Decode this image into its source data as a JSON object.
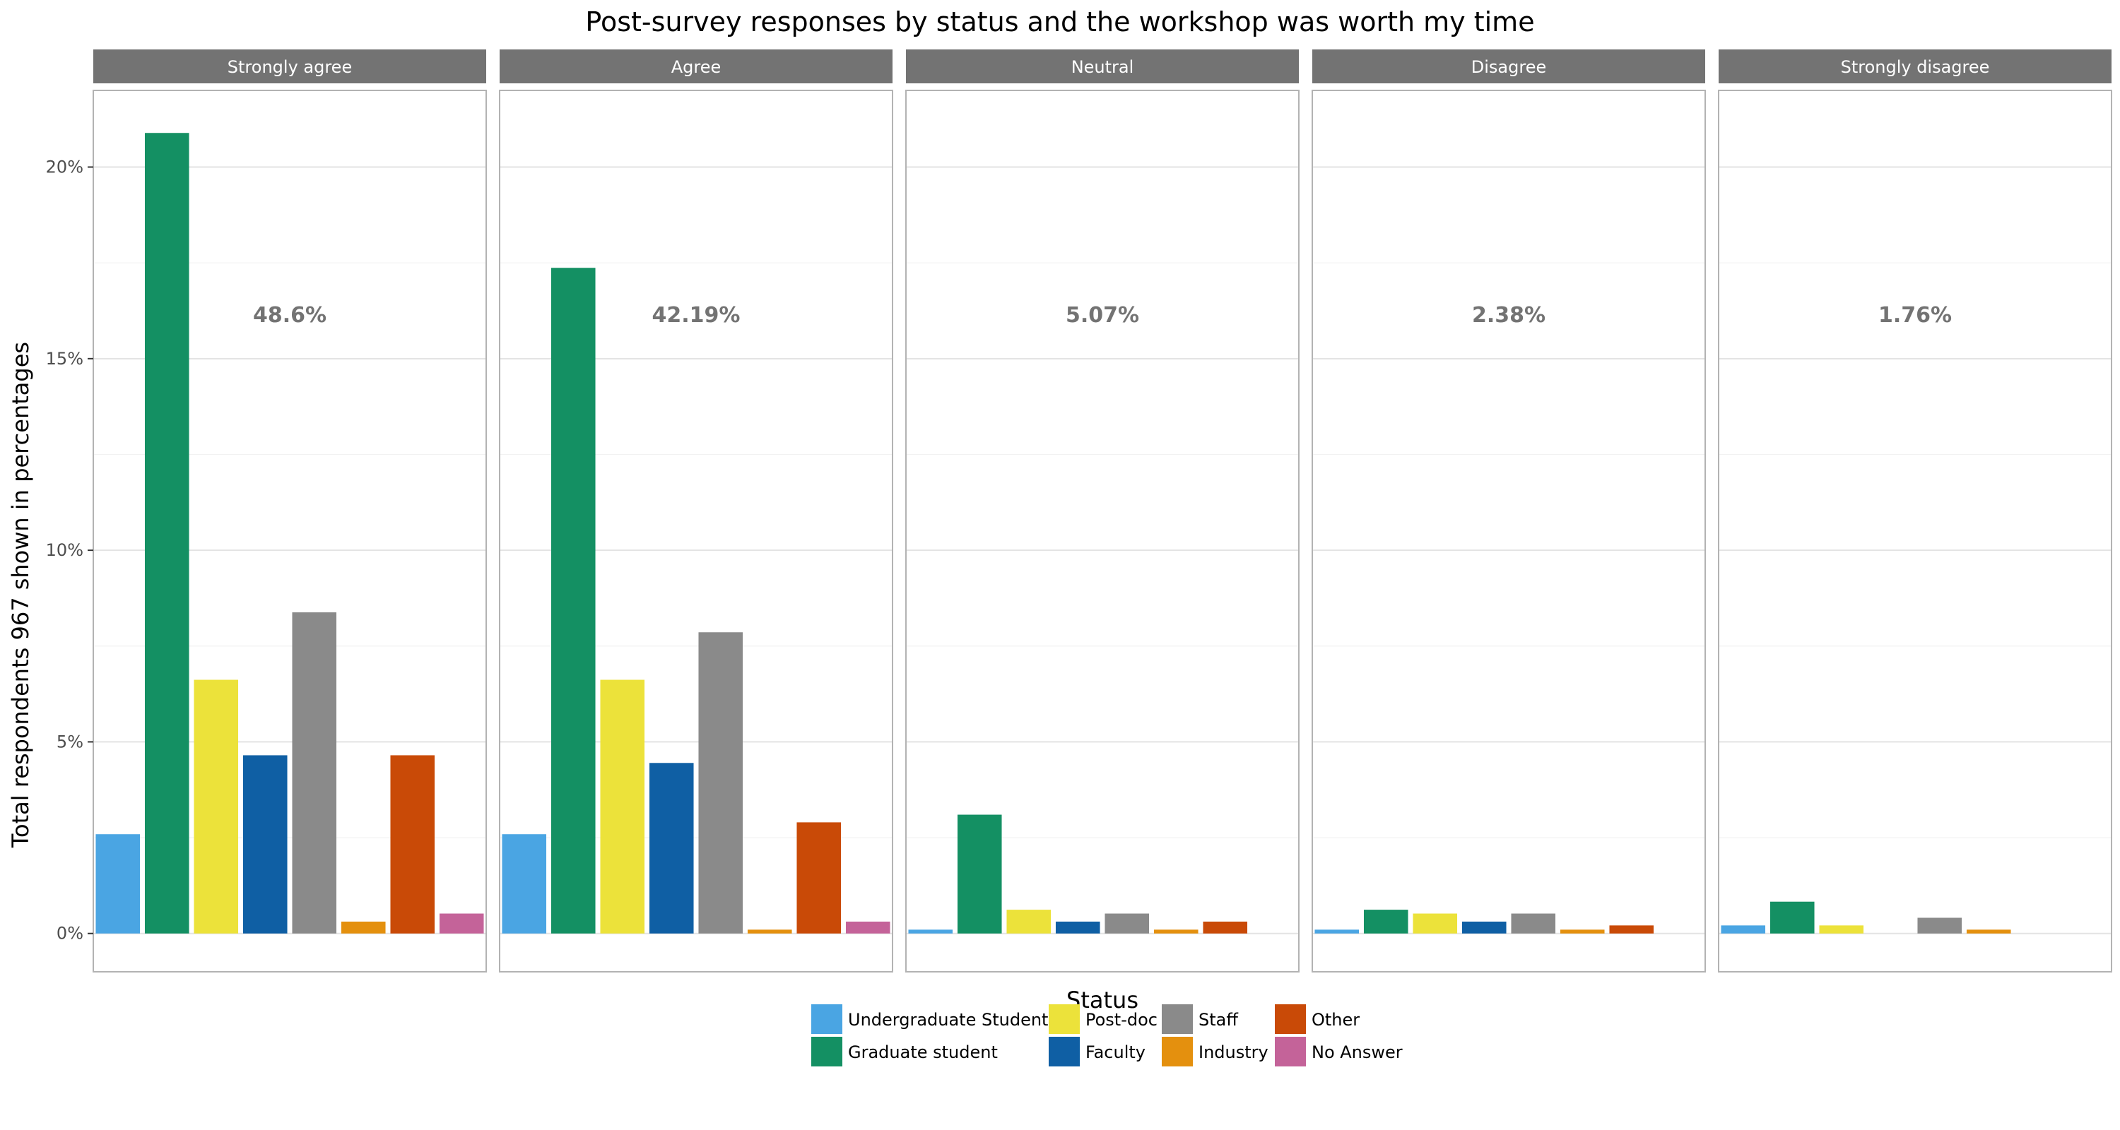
{
  "chart_data": {
    "type": "bar",
    "title": "Post-survey responses by status and the workshop was worth my time",
    "xlabel": "Status",
    "ylabel": "Total respondents 967 shown in percentages",
    "ylim": [
      -1,
      22
    ],
    "yticks": [
      0,
      5,
      10,
      15,
      20
    ],
    "ytick_labels": [
      "0%",
      "5%",
      "10%",
      "15%",
      "20%"
    ],
    "grid": true,
    "legend_position": "bottom",
    "facets": [
      "Strongly agree",
      "Agree",
      "Neutral",
      "Disagree",
      "Strongly disagree"
    ],
    "facet_totals": [
      "48.6%",
      "42.19%",
      "5.07%",
      "2.38%",
      "1.76%"
    ],
    "categories": [
      "Undergraduate Student",
      "Graduate student",
      "Post-doc",
      "Faculty",
      "Staff",
      "Industry",
      "Other",
      "No Answer"
    ],
    "colors": [
      "#4aa5e3",
      "#149063",
      "#ece23a",
      "#0f5fa4",
      "#8a8a8a",
      "#e4900e",
      "#c94a07",
      "#c46399"
    ],
    "values": [
      [
        2.59,
        20.89,
        6.62,
        4.65,
        8.38,
        0.31,
        4.65,
        0.52
      ],
      [
        2.59,
        17.37,
        6.62,
        4.45,
        7.86,
        0.1,
        2.9,
        0.31
      ],
      [
        0.1,
        3.1,
        0.62,
        0.31,
        0.52,
        0.1,
        0.31,
        null
      ],
      [
        0.1,
        0.62,
        0.52,
        0.31,
        0.52,
        0.1,
        0.21,
        null
      ],
      [
        0.21,
        0.83,
        0.21,
        null,
        0.41,
        0.1,
        null,
        null
      ]
    ]
  }
}
